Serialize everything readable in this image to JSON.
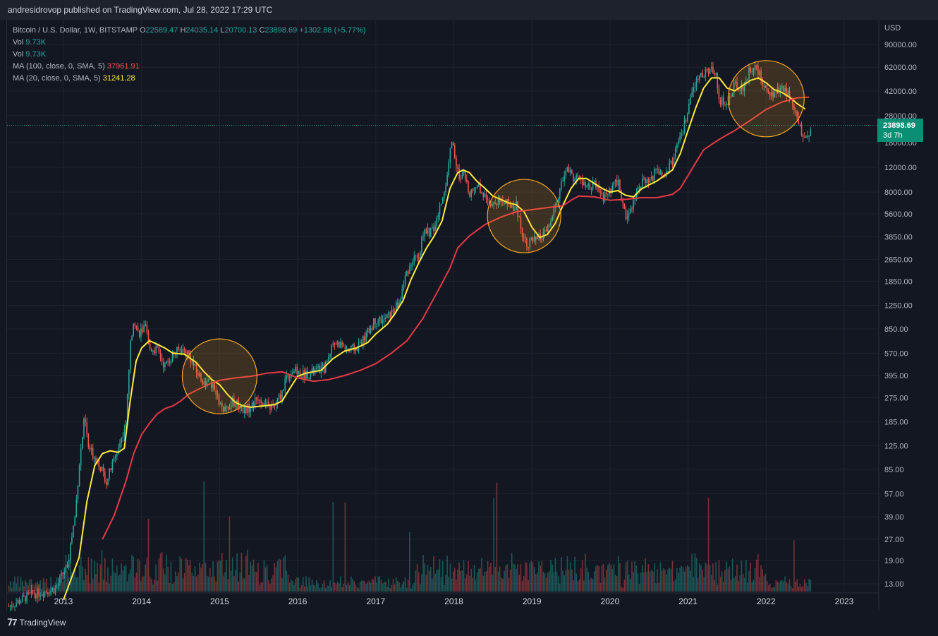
{
  "header": {
    "publisher_text": "andresidrovop published on TradingView.com, Jul 28, 2022 17:29 UTC"
  },
  "legend": {
    "symbol": "Bitcoin / U.S. Dollar, 1W, BITSTAMP",
    "o_key": "O",
    "o_val": "22589.47",
    "h_key": "H",
    "h_val": "24035.14",
    "l_key": "L",
    "l_val": "20700.13",
    "c_key": "C",
    "c_val": "23898.69",
    "change": "+1302.88 (+5.77%)",
    "vol1_label": "Vol",
    "vol1_val": "9.73K",
    "vol2_label": "Vol",
    "vol2_val": "9.73K",
    "ma100_label": "MA (100, close, 0, SMA, 5)",
    "ma100_val": "37961.91",
    "ma20_label": "MA (20, close, 0, SMA, 5)",
    "ma20_val": "31241.28"
  },
  "price_axis": {
    "unit": "USD",
    "last_price": "23898.69",
    "countdown": "3d 7h"
  },
  "footer": {
    "logo_text": "TradingView"
  },
  "colors": {
    "background": "#131722",
    "grid": "#1f2330",
    "up": "#26a69a",
    "down": "#ef5350",
    "ma20": "#ffeb3b",
    "ma100": "#e53945",
    "highlight_circle": "#f5a623"
  },
  "chart_data": {
    "type": "candlestick",
    "title": "Bitcoin / U.S. Dollar, 1W, BITSTAMP",
    "scale": "log",
    "ylim": [
      10,
      120000
    ],
    "xlim": [
      2012.2,
      2023.3
    ],
    "y_ticks": [
      "90000.00",
      "62000.00",
      "42000.00",
      "28000.00",
      "18000.00",
      "12000.00",
      "8000.00",
      "5600.00",
      "3850.00",
      "2650.00",
      "1850.00",
      "1250.00",
      "850.00",
      "570.00",
      "395.00",
      "275.00",
      "185.00",
      "125.00",
      "85.00",
      "57.00",
      "39.00",
      "27.00",
      "19.00",
      "13.00"
    ],
    "x_ticks": [
      "2013",
      "2014",
      "2015",
      "2016",
      "2017",
      "2018",
      "2019",
      "2020",
      "2021",
      "2022",
      "2023"
    ],
    "price_path": [
      [
        2012.3,
        9
      ],
      [
        2012.6,
        11
      ],
      [
        2012.9,
        12
      ],
      [
        2013.05,
        18
      ],
      [
        2013.15,
        40
      ],
      [
        2013.2,
        90
      ],
      [
        2013.27,
        200
      ],
      [
        2013.32,
        120
      ],
      [
        2013.45,
        95
      ],
      [
        2013.55,
        70
      ],
      [
        2013.7,
        120
      ],
      [
        2013.8,
        180
      ],
      [
        2013.85,
        600
      ],
      [
        2013.9,
        1050
      ],
      [
        2013.95,
        800
      ],
      [
        2014.05,
        850
      ],
      [
        2014.1,
        620
      ],
      [
        2014.2,
        600
      ],
      [
        2014.3,
        460
      ],
      [
        2014.4,
        560
      ],
      [
        2014.5,
        610
      ],
      [
        2014.6,
        570
      ],
      [
        2014.7,
        420
      ],
      [
        2014.8,
        360
      ],
      [
        2014.9,
        340
      ],
      [
        2015.0,
        250
      ],
      [
        2015.05,
        210
      ],
      [
        2015.1,
        240
      ],
      [
        2015.2,
        260
      ],
      [
        2015.3,
        230
      ],
      [
        2015.4,
        235
      ],
      [
        2015.5,
        280
      ],
      [
        2015.6,
        240
      ],
      [
        2015.7,
        235
      ],
      [
        2015.8,
        300
      ],
      [
        2015.85,
        390
      ],
      [
        2015.95,
        430
      ],
      [
        2016.05,
        400
      ],
      [
        2016.2,
        420
      ],
      [
        2016.35,
        450
      ],
      [
        2016.45,
        680
      ],
      [
        2016.55,
        660
      ],
      [
        2016.65,
        600
      ],
      [
        2016.75,
        620
      ],
      [
        2016.85,
        720
      ],
      [
        2016.95,
        900
      ],
      [
        2017.0,
        1000
      ],
      [
        2017.1,
        970
      ],
      [
        2017.2,
        1100
      ],
      [
        2017.3,
        1300
      ],
      [
        2017.4,
        2200
      ],
      [
        2017.5,
        2700
      ],
      [
        2017.55,
        2500
      ],
      [
        2017.6,
        4200
      ],
      [
        2017.7,
        4100
      ],
      [
        2017.75,
        4400
      ],
      [
        2017.85,
        7000
      ],
      [
        2017.92,
        11000
      ],
      [
        2017.97,
        19000
      ],
      [
        2018.02,
        14000
      ],
      [
        2018.08,
        9000
      ],
      [
        2018.12,
        11000
      ],
      [
        2018.2,
        8000
      ],
      [
        2018.3,
        9000
      ],
      [
        2018.4,
        7500
      ],
      [
        2018.5,
        6500
      ],
      [
        2018.6,
        7200
      ],
      [
        2018.7,
        6500
      ],
      [
        2018.8,
        6400
      ],
      [
        2018.87,
        4200
      ],
      [
        2018.93,
        3500
      ],
      [
        2019.05,
        3600
      ],
      [
        2019.15,
        3900
      ],
      [
        2019.25,
        5000
      ],
      [
        2019.35,
        8000
      ],
      [
        2019.45,
        12000
      ],
      [
        2019.5,
        10500
      ],
      [
        2019.6,
        10000
      ],
      [
        2019.7,
        8500
      ],
      [
        2019.8,
        9000
      ],
      [
        2019.9,
        7300
      ],
      [
        2020.0,
        8000
      ],
      [
        2020.1,
        9800
      ],
      [
        2020.2,
        5200
      ],
      [
        2020.3,
        7000
      ],
      [
        2020.4,
        9500
      ],
      [
        2020.5,
        9200
      ],
      [
        2020.6,
        11500
      ],
      [
        2020.7,
        10800
      ],
      [
        2020.8,
        13500
      ],
      [
        2020.9,
        19000
      ],
      [
        2021.0,
        30000
      ],
      [
        2021.05,
        40000
      ],
      [
        2021.1,
        48000
      ],
      [
        2021.2,
        57000
      ],
      [
        2021.3,
        58000
      ],
      [
        2021.35,
        60000
      ],
      [
        2021.4,
        37000
      ],
      [
        2021.5,
        33000
      ],
      [
        2021.55,
        40000
      ],
      [
        2021.6,
        47000
      ],
      [
        2021.7,
        44000
      ],
      [
        2021.8,
        62000
      ],
      [
        2021.85,
        64000
      ],
      [
        2021.9,
        57000
      ],
      [
        2021.95,
        48000
      ],
      [
        2022.0,
        46000
      ],
      [
        2022.05,
        38000
      ],
      [
        2022.1,
        42000
      ],
      [
        2022.2,
        44000
      ],
      [
        2022.3,
        39000
      ],
      [
        2022.35,
        30000
      ],
      [
        2022.4,
        29000
      ],
      [
        2022.45,
        20000
      ],
      [
        2022.5,
        19500
      ],
      [
        2022.55,
        21000
      ],
      [
        2022.57,
        23898.69
      ]
    ],
    "series": [
      {
        "name": "MA (20, close, 0, SMA, 5)",
        "values": [
          [
            2013.0,
            10
          ],
          [
            2013.2,
            20
          ],
          [
            2013.3,
            50
          ],
          [
            2013.4,
            90
          ],
          [
            2013.5,
            110
          ],
          [
            2013.6,
            115
          ],
          [
            2013.7,
            112
          ],
          [
            2013.78,
            120
          ],
          [
            2013.85,
            250
          ],
          [
            2013.93,
            500
          ],
          [
            2014.0,
            620
          ],
          [
            2014.1,
            700
          ],
          [
            2014.2,
            660
          ],
          [
            2014.3,
            620
          ],
          [
            2014.4,
            570
          ],
          [
            2014.55,
            560
          ],
          [
            2014.7,
            490
          ],
          [
            2014.8,
            420
          ],
          [
            2014.9,
            370
          ],
          [
            2015.0,
            340
          ],
          [
            2015.1,
            290
          ],
          [
            2015.2,
            255
          ],
          [
            2015.3,
            240
          ],
          [
            2015.4,
            235
          ],
          [
            2015.55,
            240
          ],
          [
            2015.7,
            245
          ],
          [
            2015.8,
            260
          ],
          [
            2015.9,
            320
          ],
          [
            2016.0,
            390
          ],
          [
            2016.1,
            410
          ],
          [
            2016.2,
            420
          ],
          [
            2016.3,
            430
          ],
          [
            2016.45,
            520
          ],
          [
            2016.6,
            590
          ],
          [
            2016.75,
            620
          ],
          [
            2016.9,
            680
          ],
          [
            2017.0,
            780
          ],
          [
            2017.15,
            920
          ],
          [
            2017.25,
            1100
          ],
          [
            2017.35,
            1350
          ],
          [
            2017.45,
            1900
          ],
          [
            2017.55,
            2500
          ],
          [
            2017.65,
            3200
          ],
          [
            2017.75,
            3900
          ],
          [
            2017.85,
            5000
          ],
          [
            2017.95,
            8500
          ],
          [
            2018.05,
            11000
          ],
          [
            2018.12,
            11500
          ],
          [
            2018.2,
            11000
          ],
          [
            2018.3,
            9500
          ],
          [
            2018.4,
            8500
          ],
          [
            2018.5,
            7500
          ],
          [
            2018.6,
            7100
          ],
          [
            2018.7,
            6700
          ],
          [
            2018.8,
            6500
          ],
          [
            2018.9,
            5800
          ],
          [
            2019.0,
            4500
          ],
          [
            2019.1,
            3800
          ],
          [
            2019.2,
            4000
          ],
          [
            2019.3,
            4800
          ],
          [
            2019.4,
            6500
          ],
          [
            2019.5,
            8500
          ],
          [
            2019.6,
            10000
          ],
          [
            2019.7,
            10000
          ],
          [
            2019.8,
            9200
          ],
          [
            2019.9,
            8500
          ],
          [
            2020.0,
            8000
          ],
          [
            2020.1,
            8200
          ],
          [
            2020.2,
            7600
          ],
          [
            2020.3,
            7400
          ],
          [
            2020.4,
            8400
          ],
          [
            2020.5,
            9000
          ],
          [
            2020.6,
            9600
          ],
          [
            2020.7,
            10500
          ],
          [
            2020.8,
            11500
          ],
          [
            2020.9,
            15000
          ],
          [
            2021.0,
            22000
          ],
          [
            2021.1,
            32000
          ],
          [
            2021.2,
            44000
          ],
          [
            2021.3,
            52000
          ],
          [
            2021.4,
            52000
          ],
          [
            2021.5,
            44000
          ],
          [
            2021.6,
            42000
          ],
          [
            2021.7,
            46000
          ],
          [
            2021.8,
            50000
          ],
          [
            2021.9,
            52000
          ],
          [
            2022.0,
            48000
          ],
          [
            2022.1,
            43000
          ],
          [
            2022.2,
            41000
          ],
          [
            2022.3,
            38000
          ],
          [
            2022.4,
            34000
          ],
          [
            2022.5,
            31241.28
          ]
        ]
      },
      {
        "name": "MA (100, close, 0, SMA, 5)",
        "values": [
          [
            2013.5,
            27
          ],
          [
            2013.65,
            40
          ],
          [
            2013.8,
            70
          ],
          [
            2013.9,
            110
          ],
          [
            2014.0,
            150
          ],
          [
            2014.1,
            180
          ],
          [
            2014.2,
            210
          ],
          [
            2014.3,
            230
          ],
          [
            2014.4,
            240
          ],
          [
            2014.5,
            260
          ],
          [
            2014.6,
            290
          ],
          [
            2014.7,
            310
          ],
          [
            2014.8,
            330
          ],
          [
            2014.9,
            350
          ],
          [
            2015.0,
            365
          ],
          [
            2015.2,
            380
          ],
          [
            2015.4,
            390
          ],
          [
            2015.6,
            410
          ],
          [
            2015.8,
            420
          ],
          [
            2016.0,
            380
          ],
          [
            2016.2,
            360
          ],
          [
            2016.4,
            370
          ],
          [
            2016.6,
            395
          ],
          [
            2016.8,
            430
          ],
          [
            2017.0,
            480
          ],
          [
            2017.2,
            570
          ],
          [
            2017.4,
            700
          ],
          [
            2017.6,
            1000
          ],
          [
            2017.8,
            1600
          ],
          [
            2017.95,
            2300
          ],
          [
            2018.05,
            3200
          ],
          [
            2018.2,
            3900
          ],
          [
            2018.4,
            4700
          ],
          [
            2018.6,
            5300
          ],
          [
            2018.8,
            5800
          ],
          [
            2019.0,
            6000
          ],
          [
            2019.2,
            6200
          ],
          [
            2019.4,
            6400
          ],
          [
            2019.5,
            7000
          ],
          [
            2019.6,
            7500
          ],
          [
            2019.8,
            7400
          ],
          [
            2020.0,
            7000
          ],
          [
            2020.2,
            7100
          ],
          [
            2020.4,
            7300
          ],
          [
            2020.6,
            7300
          ],
          [
            2020.8,
            7700
          ],
          [
            2020.9,
            8500
          ],
          [
            2021.0,
            10500
          ],
          [
            2021.1,
            13000
          ],
          [
            2021.2,
            16000
          ],
          [
            2021.4,
            19000
          ],
          [
            2021.6,
            22000
          ],
          [
            2021.8,
            26000
          ],
          [
            2022.0,
            31000
          ],
          [
            2022.2,
            35000
          ],
          [
            2022.4,
            37500
          ],
          [
            2022.55,
            37961.91
          ]
        ]
      }
    ],
    "volume_scale_max": 1
  }
}
